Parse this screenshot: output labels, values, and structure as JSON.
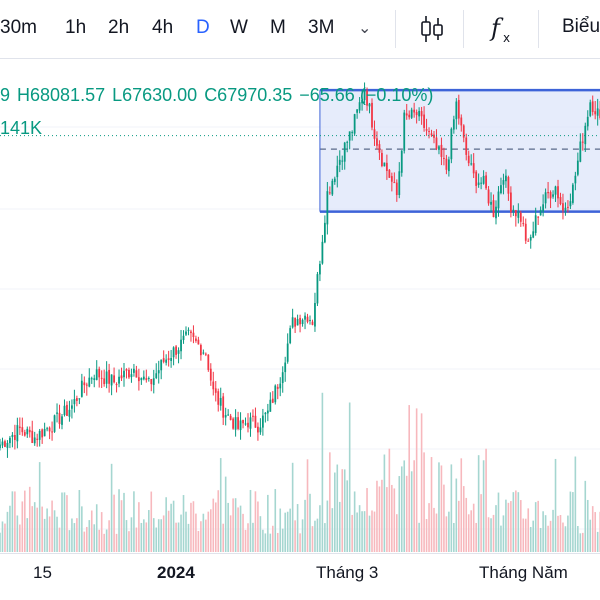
{
  "toolbar": {
    "timeframes": [
      "30m",
      "1h",
      "2h",
      "4h",
      "D",
      "W",
      "M",
      "3M"
    ],
    "active_timeframe": "D",
    "dropdown_icon": "chevron-down-icon",
    "indicator_icons": [
      "candlestick-chart-icon",
      "fx-indicators-icon"
    ],
    "layout_label": "Biểu"
  },
  "legend": {
    "open_fragment": "9",
    "high": "H68081.57",
    "low": "L67630.00",
    "close": "C67970.35",
    "change": "−65.66 (−0.10%)",
    "volume_fragment": "141K",
    "color": "#089981"
  },
  "colors": {
    "up": "#089981",
    "down": "#f23645",
    "volume_up": "#a5d6d0",
    "volume_down": "#f7b8bd",
    "range_fill": "#dde6f9",
    "range_border": "#3d63d8",
    "price_line": "#089981"
  },
  "chart_data": {
    "type": "candlestick",
    "x_ticks": [
      "15",
      "2024",
      "Tháng 3",
      "Tháng Năm"
    ],
    "price_range": [
      36500,
      74500
    ],
    "current_price": 67970.35,
    "range_box": {
      "top": 71900,
      "mid": 66800,
      "bottom": 61400,
      "start_index": 129
    },
    "anchors": [
      [
        0,
        41300
      ],
      [
        8,
        42600
      ],
      [
        14,
        41900
      ],
      [
        22,
        43200
      ],
      [
        29,
        44600
      ],
      [
        34,
        46500
      ],
      [
        38,
        47500
      ],
      [
        46,
        46700
      ],
      [
        54,
        47900
      ],
      [
        60,
        46400
      ],
      [
        66,
        48500
      ],
      [
        76,
        50600
      ],
      [
        83,
        49300
      ],
      [
        86,
        45800
      ],
      [
        90,
        44300
      ],
      [
        96,
        42700
      ],
      [
        100,
        43300
      ],
      [
        104,
        43000
      ],
      [
        108,
        44000
      ],
      [
        113,
        47200
      ],
      [
        118,
        51800
      ],
      [
        121,
        52300
      ],
      [
        124,
        52500
      ],
      [
        126,
        52000
      ],
      [
        129,
        57400
      ],
      [
        132,
        63000
      ],
      [
        137,
        66000
      ],
      [
        142,
        68500
      ],
      [
        147,
        72100
      ],
      [
        151,
        68300
      ],
      [
        154,
        66000
      ],
      [
        157,
        64500
      ],
      [
        160,
        62800
      ],
      [
        163,
        69400
      ],
      [
        168,
        69800
      ],
      [
        172,
        68400
      ],
      [
        175,
        67200
      ],
      [
        180,
        65100
      ],
      [
        184,
        70700
      ],
      [
        188,
        66300
      ],
      [
        191,
        64400
      ],
      [
        195,
        63800
      ],
      [
        199,
        61400
      ],
      [
        203,
        64800
      ],
      [
        206,
        62000
      ],
      [
        210,
        60900
      ],
      [
        213,
        58300
      ],
      [
        217,
        61400
      ],
      [
        221,
        62900
      ],
      [
        224,
        63600
      ],
      [
        227,
        61500
      ],
      [
        231,
        63400
      ],
      [
        234,
        66900
      ],
      [
        238,
        71000
      ],
      [
        241,
        70000
      ],
      [
        243,
        67970
      ]
    ]
  }
}
